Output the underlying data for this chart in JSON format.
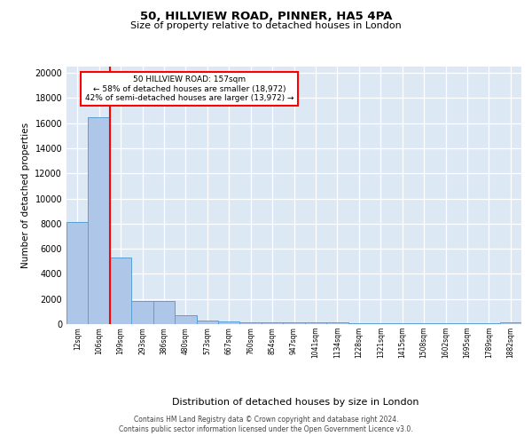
{
  "title1": "50, HILLVIEW ROAD, PINNER, HA5 4PA",
  "title2": "Size of property relative to detached houses in London",
  "xlabel": "Distribution of detached houses by size in London",
  "ylabel": "Number of detached properties",
  "categories": [
    "12sqm",
    "106sqm",
    "199sqm",
    "293sqm",
    "386sqm",
    "480sqm",
    "573sqm",
    "667sqm",
    "760sqm",
    "854sqm",
    "947sqm",
    "1041sqm",
    "1134sqm",
    "1228sqm",
    "1321sqm",
    "1415sqm",
    "1508sqm",
    "1602sqm",
    "1695sqm",
    "1789sqm",
    "1882sqm"
  ],
  "values": [
    8100,
    16500,
    5300,
    1850,
    1850,
    700,
    300,
    200,
    175,
    150,
    130,
    120,
    110,
    100,
    90,
    80,
    75,
    70,
    60,
    55,
    130
  ],
  "bar_color": "#aec6e8",
  "bar_edge_color": "#5a9fd4",
  "red_line_x": 1.5,
  "annotation_line1": "50 HILLVIEW ROAD: 157sqm",
  "annotation_line2": "← 58% of detached houses are smaller (18,972)",
  "annotation_line3": "42% of semi-detached houses are larger (13,972) →",
  "ylim": [
    0,
    20500
  ],
  "yticks": [
    0,
    2000,
    4000,
    6000,
    8000,
    10000,
    12000,
    14000,
    16000,
    18000,
    20000
  ],
  "background_color": "#dde8f5",
  "footer1": "Contains HM Land Registry data © Crown copyright and database right 2024.",
  "footer2": "Contains public sector information licensed under the Open Government Licence v3.0."
}
